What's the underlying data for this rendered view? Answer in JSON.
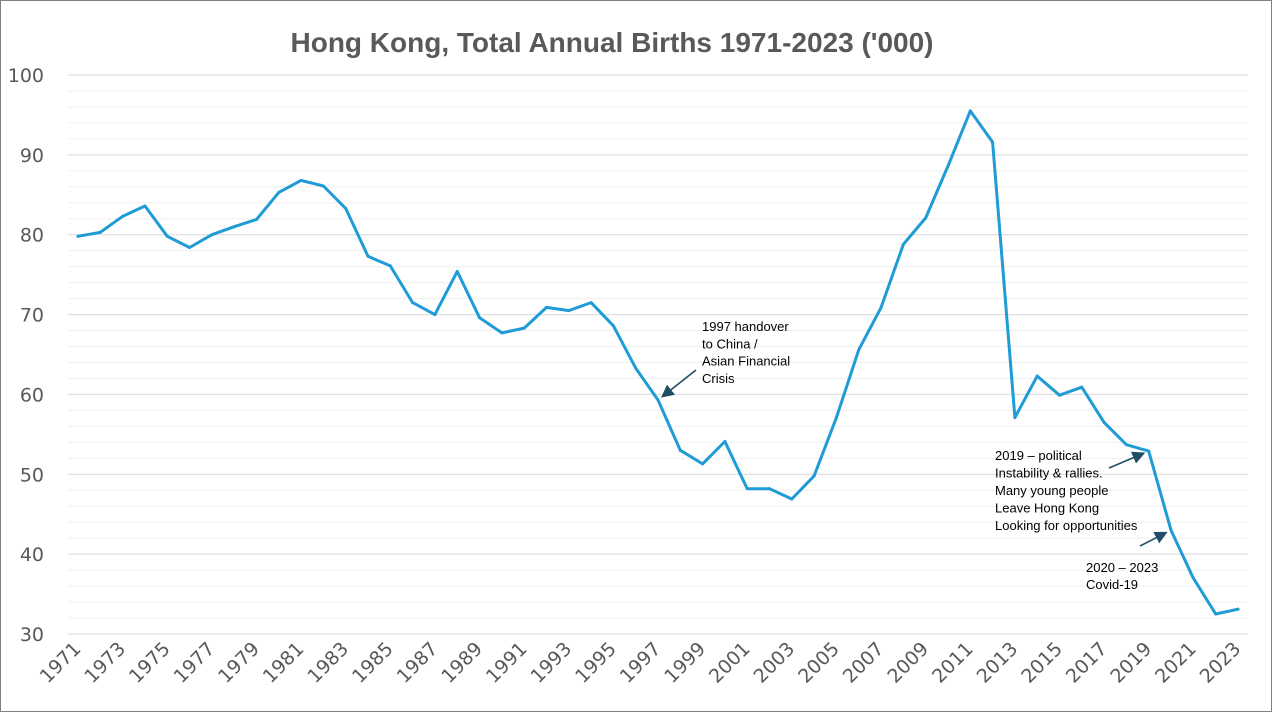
{
  "chart_data": {
    "type": "line",
    "title": "Hong Kong, Total Annual Births 1971-2023 ('000)",
    "xlabel": "",
    "ylabel": "",
    "ylim": [
      30,
      100
    ],
    "yticks": [
      30,
      40,
      50,
      60,
      70,
      80,
      90,
      100
    ],
    "xticks": [
      1971,
      1973,
      1975,
      1977,
      1979,
      1981,
      1983,
      1985,
      1987,
      1989,
      1991,
      1993,
      1995,
      1997,
      1999,
      2001,
      2003,
      2005,
      2007,
      2009,
      2011,
      2013,
      2015,
      2017,
      2019,
      2021,
      2023
    ],
    "grid": true,
    "line_color": "#1f9bd6",
    "series": [
      {
        "x": [
          1971,
          1972,
          1973,
          1974,
          1975,
          1976,
          1977,
          1978,
          1979,
          1980,
          1981,
          1982,
          1983,
          1984,
          1985,
          1986,
          1987,
          1988,
          1989,
          1990,
          1991,
          1992,
          1993,
          1994,
          1995,
          1996,
          1997,
          1998,
          1999,
          2000,
          2001,
          2002,
          2003,
          2004,
          2005,
          2006,
          2007,
          2008,
          2009,
          2010,
          2011,
          2012,
          2013,
          2014,
          2015,
          2016,
          2017,
          2018,
          2019,
          2020,
          2021,
          2022,
          2023
        ],
        "values": [
          79.8,
          80.3,
          82.3,
          83.6,
          79.8,
          78.4,
          80.0,
          81.0,
          81.9,
          85.3,
          86.8,
          86.1,
          83.3,
          77.3,
          76.1,
          71.5,
          70.0,
          75.4,
          69.6,
          67.7,
          68.3,
          70.9,
          70.5,
          71.5,
          68.6,
          63.3,
          59.3,
          53.0,
          51.3,
          54.1,
          48.2,
          48.2,
          46.9,
          49.8,
          57.1,
          65.6,
          70.9,
          78.8,
          82.1,
          88.6,
          95.5,
          91.6,
          57.1,
          62.3,
          59.9,
          60.9,
          56.5,
          53.7,
          52.9,
          43.0,
          37.0,
          32.5,
          33.1
        ]
      }
    ],
    "annotations": [
      {
        "lines": [
          "1997 handover",
          "to China /",
          " Asian Financial",
          "Crisis"
        ],
        "points_to": [
          1997,
          59.3
        ]
      },
      {
        "lines": [
          "2019 – political",
          "Instability & rallies.",
          "Many young people",
          "Leave Hong Kong",
          "Looking for opportunities"
        ],
        "points_to": [
          2019,
          52.9
        ]
      },
      {
        "lines": [
          "2020 – 2023",
          "Covid-19"
        ],
        "points_to": [
          2020,
          43.0
        ]
      }
    ]
  }
}
